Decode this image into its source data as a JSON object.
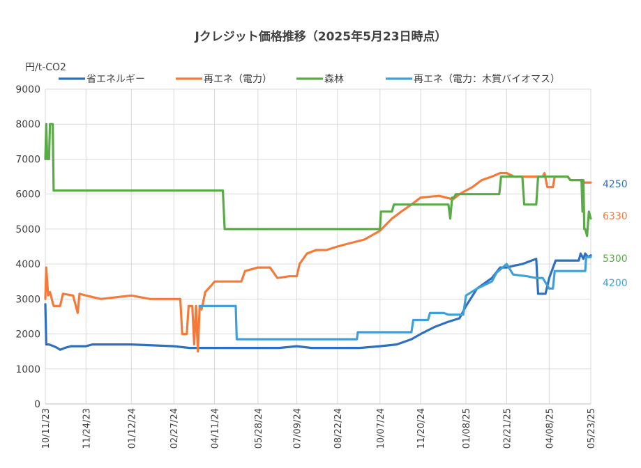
{
  "chart_data": {
    "type": "line",
    "title": "Jクレジット価格推移（2025年5月23日時点）",
    "ylabel": "円/t-CO2",
    "ylim": [
      0,
      9000
    ],
    "yticks": [
      0,
      1000,
      2000,
      3000,
      4000,
      5000,
      6000,
      7000,
      8000,
      9000
    ],
    "x_ticks": [
      "10/11/23",
      "11/24/23",
      "01/12/24",
      "02/27/24",
      "04/11/24",
      "05/28/24",
      "07/09/24",
      "08/22/24",
      "10/07/24",
      "11/20/24",
      "01/08/25",
      "02/21/25",
      "04/08/25",
      "05/23/25"
    ],
    "xlim": [
      "10/11/23",
      "05/23/25"
    ],
    "grid": true,
    "legend_position": "top",
    "end_labels": [
      "6330",
      "5300",
      "4250",
      "4200"
    ],
    "series": [
      {
        "name": "省エネルギー",
        "color": "#2e6fbf",
        "end_label": "4250",
        "points": [
          [
            "10/11/23",
            2850
          ],
          [
            "10/12/23",
            1700
          ],
          [
            "10/15/23",
            1700
          ],
          [
            "10/20/23",
            1650
          ],
          [
            "10/24/23",
            1600
          ],
          [
            "10/27/23",
            1550
          ],
          [
            "11/01/23",
            1600
          ],
          [
            "11/08/23",
            1650
          ],
          [
            "11/24/23",
            1650
          ],
          [
            "12/01/23",
            1700
          ],
          [
            "01/12/24",
            1700
          ],
          [
            "02/27/24",
            1650
          ],
          [
            "03/15/24",
            1600
          ],
          [
            "04/11/24",
            1600
          ],
          [
            "05/28/24",
            1600
          ],
          [
            "06/20/24",
            1600
          ],
          [
            "07/09/24",
            1650
          ],
          [
            "07/25/24",
            1600
          ],
          [
            "08/22/24",
            1600
          ],
          [
            "09/15/24",
            1600
          ],
          [
            "10/07/24",
            1650
          ],
          [
            "10/25/24",
            1700
          ],
          [
            "11/10/24",
            1850
          ],
          [
            "11/20/24",
            2000
          ],
          [
            "12/05/24",
            2200
          ],
          [
            "12/20/24",
            2350
          ],
          [
            "01/01/25",
            2450
          ],
          [
            "01/08/25",
            2800
          ],
          [
            "01/20/25",
            3300
          ],
          [
            "02/05/25",
            3600
          ],
          [
            "02/14/25",
            3900
          ],
          [
            "02/21/25",
            3900
          ],
          [
            "03/01/25",
            3950
          ],
          [
            "03/10/25",
            4000
          ],
          [
            "03/20/25",
            4100
          ],
          [
            "03/25/25",
            4150
          ],
          [
            "03/27/25",
            3150
          ],
          [
            "04/04/25",
            3150
          ],
          [
            "04/08/25",
            3600
          ],
          [
            "04/15/25",
            4100
          ],
          [
            "05/01/25",
            4100
          ],
          [
            "05/10/25",
            4100
          ],
          [
            "05/12/25",
            4300
          ],
          [
            "05/15/25",
            4150
          ],
          [
            "05/17/25",
            4300
          ],
          [
            "05/20/25",
            4200
          ],
          [
            "05/23/25",
            4250
          ]
        ]
      },
      {
        "name": "再エネ（電力）",
        "color": "#f47a3a",
        "end_label": "6330",
        "points": [
          [
            "10/11/23",
            3000
          ],
          [
            "10/12/23",
            3900
          ],
          [
            "10/14/23",
            3100
          ],
          [
            "10/16/23",
            3200
          ],
          [
            "10/20/23",
            2800
          ],
          [
            "10/27/23",
            2800
          ],
          [
            "10/30/23",
            3150
          ],
          [
            "11/10/23",
            3100
          ],
          [
            "11/15/23",
            2600
          ],
          [
            "11/17/23",
            3150
          ],
          [
            "11/24/23",
            3100
          ],
          [
            "12/10/23",
            3000
          ],
          [
            "01/12/24",
            3100
          ],
          [
            "02/01/24",
            3000
          ],
          [
            "02/27/24",
            3000
          ],
          [
            "03/05/24",
            3000
          ],
          [
            "03/07/24",
            2000
          ],
          [
            "03/12/24",
            2000
          ],
          [
            "03/14/24",
            2800
          ],
          [
            "03/18/24",
            2800
          ],
          [
            "03/20/24",
            1700
          ],
          [
            "03/22/24",
            2800
          ],
          [
            "03/24/24",
            1500
          ],
          [
            "03/26/24",
            2800
          ],
          [
            "03/28/24",
            2700
          ],
          [
            "04/01/24",
            3200
          ],
          [
            "04/08/24",
            3400
          ],
          [
            "04/11/24",
            3500
          ],
          [
            "04/25/24",
            3500
          ],
          [
            "05/01/24",
            3500
          ],
          [
            "05/10/24",
            3500
          ],
          [
            "05/14/24",
            3800
          ],
          [
            "05/28/24",
            3900
          ],
          [
            "06/10/24",
            3900
          ],
          [
            "06/18/24",
            3600
          ],
          [
            "07/01/24",
            3650
          ],
          [
            "07/09/24",
            3650
          ],
          [
            "07/12/24",
            4000
          ],
          [
            "07/20/24",
            4300
          ],
          [
            "07/30/24",
            4400
          ],
          [
            "08/10/24",
            4400
          ],
          [
            "08/22/24",
            4500
          ],
          [
            "09/05/24",
            4600
          ],
          [
            "09/20/24",
            4700
          ],
          [
            "10/07/24",
            4950
          ],
          [
            "10/20/24",
            5300
          ],
          [
            "10/30/24",
            5500
          ],
          [
            "11/10/24",
            5700
          ],
          [
            "11/20/24",
            5900
          ],
          [
            "12/10/24",
            5950
          ],
          [
            "12/25/24",
            5850
          ],
          [
            "01/01/25",
            6000
          ],
          [
            "01/08/25",
            6100
          ],
          [
            "01/15/25",
            6200
          ],
          [
            "01/25/25",
            6400
          ],
          [
            "02/05/25",
            6500
          ],
          [
            "02/14/25",
            6600
          ],
          [
            "02/21/25",
            6600
          ],
          [
            "03/01/25",
            6500
          ],
          [
            "03/20/25",
            6500
          ],
          [
            "04/01/25",
            6500
          ],
          [
            "04/03/25",
            6600
          ],
          [
            "04/06/25",
            6200
          ],
          [
            "04/12/25",
            6200
          ],
          [
            "04/14/25",
            6500
          ],
          [
            "04/28/25",
            6500
          ],
          [
            "05/01/25",
            6400
          ],
          [
            "05/14/25",
            6400
          ],
          [
            "05/16/25",
            6330
          ],
          [
            "05/23/25",
            6330
          ]
        ]
      },
      {
        "name": "森林",
        "color": "#5aab47",
        "end_label": "5300",
        "points": [
          [
            "10/11/23",
            7000
          ],
          [
            "10/12/23",
            8000
          ],
          [
            "10/13/23",
            7000
          ],
          [
            "10/15/23",
            7000
          ],
          [
            "10/16/23",
            8000
          ],
          [
            "10/19/23",
            8000
          ],
          [
            "10/20/23",
            6100
          ],
          [
            "01/12/24",
            6100
          ],
          [
            "04/11/24",
            6100
          ],
          [
            "04/20/24",
            6100
          ],
          [
            "04/22/24",
            5000
          ],
          [
            "08/22/24",
            5000
          ],
          [
            "10/07/24",
            5000
          ],
          [
            "10/08/24",
            5500
          ],
          [
            "10/20/24",
            5500
          ],
          [
            "10/22/24",
            5700
          ],
          [
            "12/20/24",
            5700
          ],
          [
            "12/22/24",
            5300
          ],
          [
            "12/24/24",
            5900
          ],
          [
            "12/26/24",
            5900
          ],
          [
            "12/28/24",
            6000
          ],
          [
            "02/13/25",
            6000
          ],
          [
            "02/15/25",
            6500
          ],
          [
            "03/10/25",
            6500
          ],
          [
            "03/12/25",
            5700
          ],
          [
            "03/25/25",
            5700
          ],
          [
            "03/27/25",
            6500
          ],
          [
            "04/28/25",
            6500
          ],
          [
            "05/01/25",
            6400
          ],
          [
            "05/13/25",
            6400
          ],
          [
            "05/14/25",
            5500
          ],
          [
            "05/15/25",
            6400
          ],
          [
            "05/16/25",
            5000
          ],
          [
            "05/17/25",
            5000
          ],
          [
            "05/19/25",
            4800
          ],
          [
            "05/21/25",
            5500
          ],
          [
            "05/23/25",
            5300
          ]
        ]
      },
      {
        "name": "再エネ（電力：木質バイオマス）",
        "color": "#3fa0d9",
        "end_label": "4200",
        "points": [
          [
            "03/26/24",
            2800
          ],
          [
            "04/01/24",
            2800
          ],
          [
            "05/04/24",
            2800
          ],
          [
            "05/05/24",
            1850
          ],
          [
            "06/15/24",
            1850
          ],
          [
            "09/12/24",
            1850
          ],
          [
            "09/13/24",
            2050
          ],
          [
            "10/07/24",
            2050
          ],
          [
            "11/10/24",
            2050
          ],
          [
            "11/12/24",
            2400
          ],
          [
            "11/28/24",
            2400
          ],
          [
            "11/30/24",
            2600
          ],
          [
            "12/15/24",
            2600
          ],
          [
            "12/20/24",
            2550
          ],
          [
            "01/05/25",
            2550
          ],
          [
            "01/08/25",
            3100
          ],
          [
            "01/20/25",
            3300
          ],
          [
            "02/05/25",
            3500
          ],
          [
            "02/10/25",
            3750
          ],
          [
            "02/21/25",
            4000
          ],
          [
            "02/28/25",
            3700
          ],
          [
            "03/15/25",
            3650
          ],
          [
            "03/25/25",
            3600
          ],
          [
            "04/01/25",
            3600
          ],
          [
            "04/08/25",
            3300
          ],
          [
            "04/12/25",
            3300
          ],
          [
            "04/14/25",
            3800
          ],
          [
            "05/17/25",
            3800
          ],
          [
            "05/18/25",
            4200
          ],
          [
            "05/23/25",
            4200
          ]
        ]
      }
    ]
  }
}
